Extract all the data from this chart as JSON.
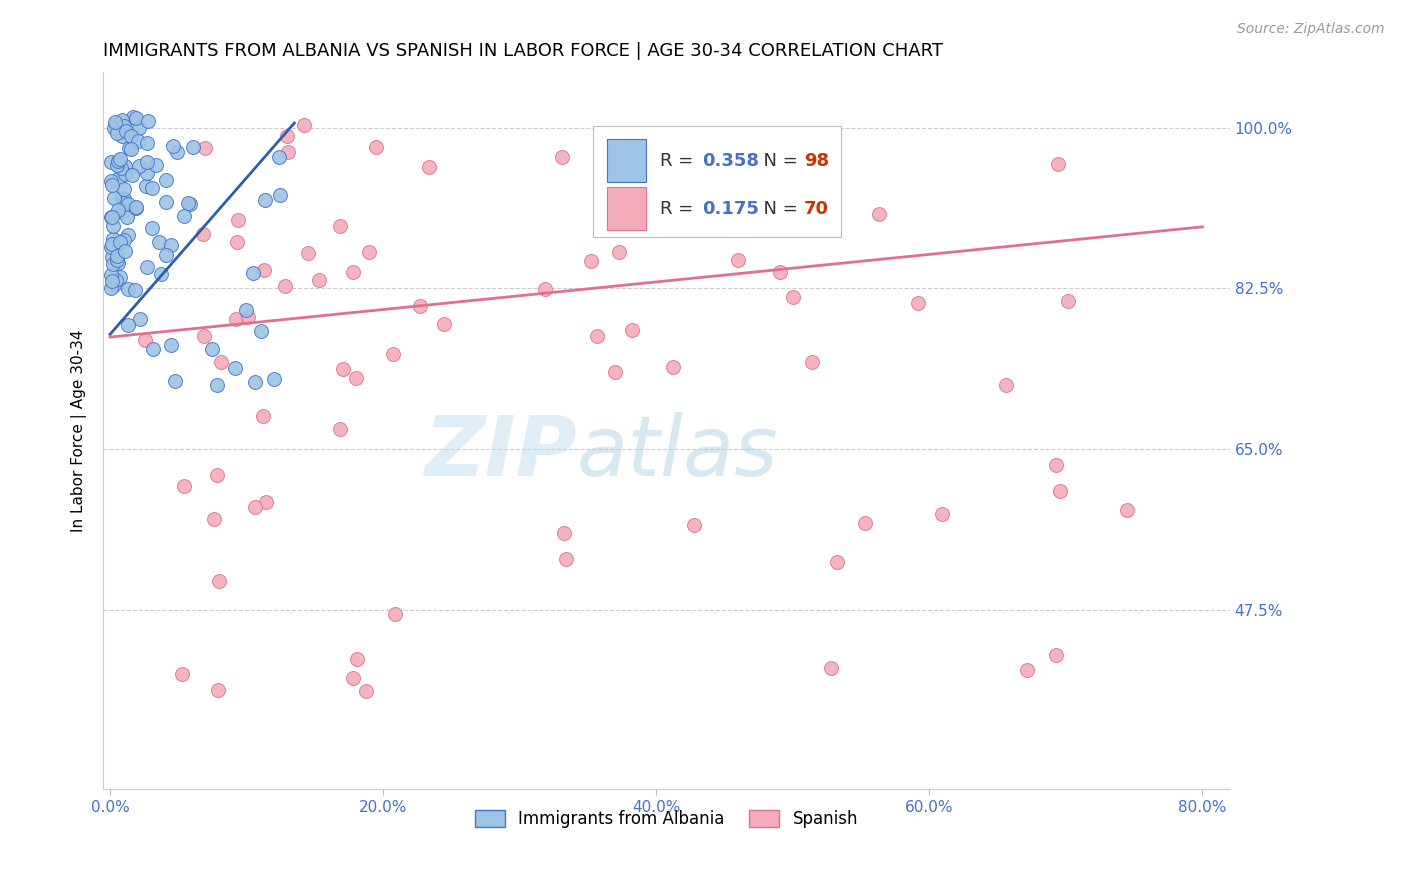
{
  "title": "IMMIGRANTS FROM ALBANIA VS SPANISH IN LABOR FORCE | AGE 30-34 CORRELATION CHART",
  "source": "Source: ZipAtlas.com",
  "ylabel": "In Labor Force | Age 30-34",
  "xlim": [
    -0.005,
    0.82
  ],
  "ylim": [
    0.28,
    1.06
  ],
  "xticks": [
    0.0,
    0.2,
    0.4,
    0.6,
    0.8
  ],
  "xticklabels": [
    "0.0%",
    "20.0%",
    "40.0%",
    "60.0%",
    "80.0%"
  ],
  "yticks": [
    0.475,
    0.65,
    0.825,
    1.0
  ],
  "yticklabels": [
    "47.5%",
    "65.0%",
    "82.5%",
    "100.0%"
  ],
  "legend_R1": "0.358",
  "legend_N1": "98",
  "legend_R2": "0.175",
  "legend_N2": "70",
  "legend_label1": "Immigrants from Albania",
  "legend_label2": "Spanish",
  "blue_line_x": [
    0.0,
    0.135
  ],
  "blue_line_y": [
    0.775,
    1.005
  ],
  "pink_line_x": [
    0.0,
    0.8
  ],
  "pink_line_y": [
    0.772,
    0.892
  ],
  "blue_color": "#9dc3e6",
  "blue_edge_color": "#4472c4",
  "pink_color": "#f4acbc",
  "pink_edge_color": "#e07090",
  "blue_line_color": "#2e5ea8",
  "pink_line_color": "#e07090",
  "axis_color": "#4472c4",
  "title_fontsize": 13,
  "label_fontsize": 11,
  "tick_fontsize": 11,
  "source_fontsize": 10,
  "scatter_size": 100
}
